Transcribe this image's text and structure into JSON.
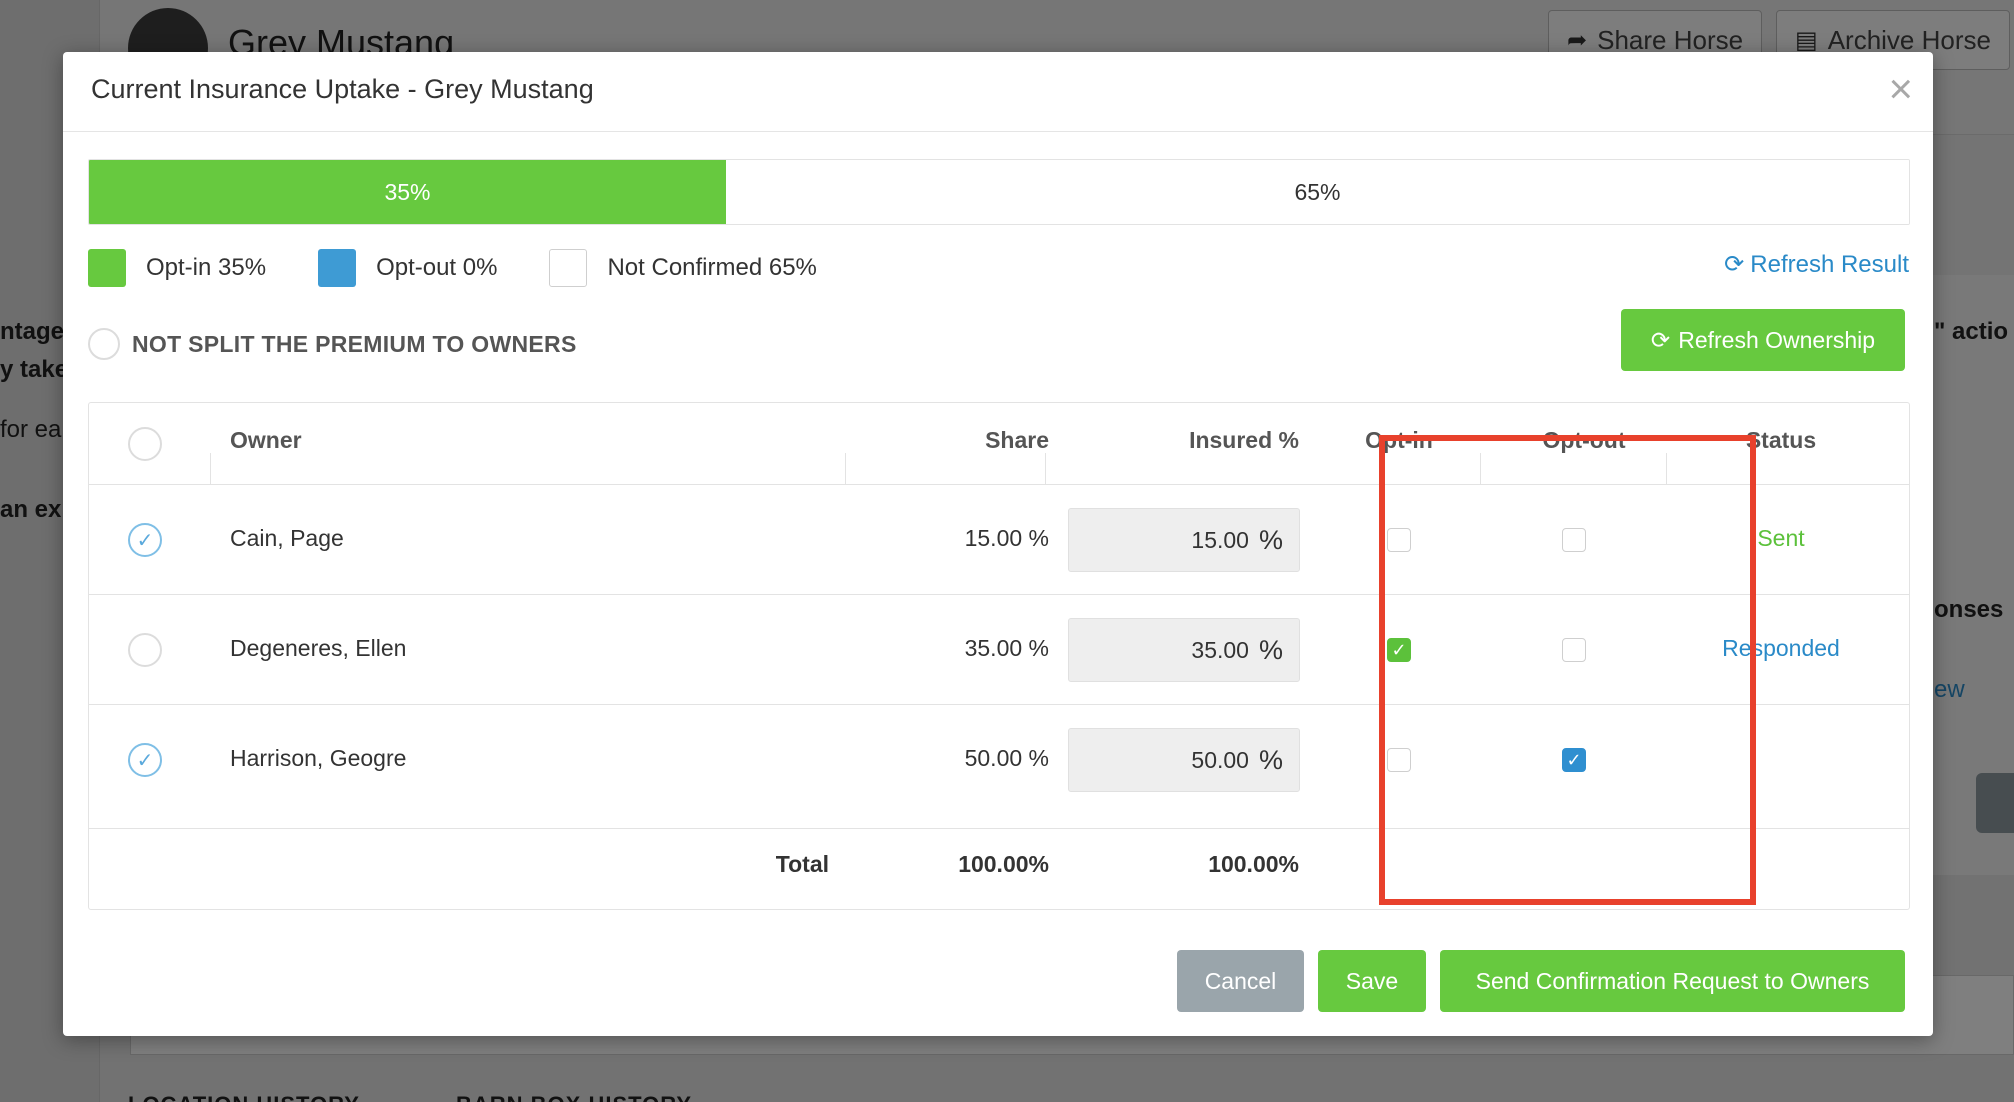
{
  "background": {
    "horse_name": "Grey Mustang",
    "share_horse_label": "Share Horse",
    "archive_horse_label": "Archive Horse",
    "left_fragments": [
      "ntage",
      "y take",
      "for ea",
      "an ex"
    ],
    "right_fragments": [
      "\" actio",
      "onses",
      "ew"
    ],
    "bottom_labels": [
      "LOCATION HISTORY",
      "BARN BOX HISTORY"
    ]
  },
  "modal": {
    "title": "Current Insurance Uptake - Grey Mustang",
    "close_label": "×",
    "progress": {
      "optin_percent": 35,
      "optin_label": "35%",
      "rest_label": "65%"
    },
    "legend": [
      {
        "label": "Opt-in 35%",
        "color": "#67c93f"
      },
      {
        "label": "Opt-out 0%",
        "color": "#3e9bd4"
      },
      {
        "label": "Not Confirmed 65%",
        "color": "#ffffff"
      }
    ],
    "refresh_result_label": "Refresh Result",
    "split_label": "NOT SPLIT THE PREMIUM TO OWNERS",
    "refresh_ownership_label": "Refresh Ownership",
    "table": {
      "headers": {
        "owner": "Owner",
        "share": "Share",
        "insured": "Insured %",
        "optin": "Opt-in",
        "optout": "Opt-out",
        "status": "Status"
      },
      "rows": [
        {
          "selected": true,
          "owner": "Cain, Page",
          "share": "15.00 %",
          "insured": "15.00",
          "optin": false,
          "optout": false,
          "status": "Sent",
          "status_color": "#5cc13b"
        },
        {
          "selected": false,
          "owner": "Degeneres, Ellen",
          "share": "35.00 %",
          "insured": "35.00",
          "optin": true,
          "optout": false,
          "status": "Responded",
          "status_color": "#2a8ac8"
        },
        {
          "selected": true,
          "owner": "Harrison, Geogre",
          "share": "50.00 %",
          "insured": "50.00",
          "optin": false,
          "optout": true,
          "status": "",
          "status_color": "#333333"
        }
      ],
      "pct_symbol": "%",
      "total_label": "Total",
      "total_share": "100.00%",
      "total_insured": "100.00%"
    },
    "buttons": {
      "cancel": "Cancel",
      "save": "Save",
      "send": "Send Confirmation Request to Owners"
    }
  }
}
